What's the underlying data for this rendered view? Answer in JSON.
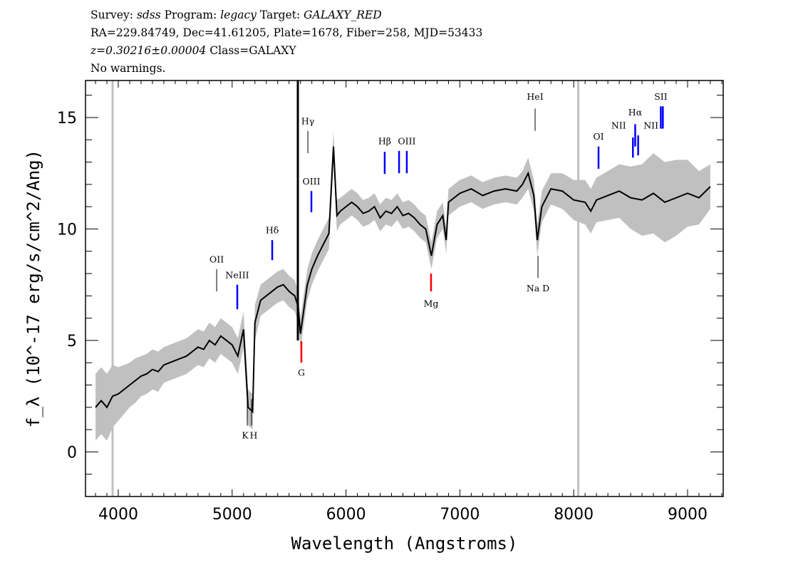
{
  "header": {
    "line1": {
      "survey_label": "Survey:",
      "survey": "sdss",
      "program_label": "Program:",
      "program": "legacy",
      "target_label": "Target:",
      "target": "GALAXY_RED"
    },
    "line2": "RA=229.84749, Dec=41.61205, Plate=1678, Fiber=258, MJD=53433",
    "line3": {
      "z": "z=0.30216±0.00004",
      "class": "Class=GALAXY"
    },
    "line4": "No warnings."
  },
  "chart_data": {
    "type": "line",
    "xlabel": "Wavelength (Angstroms)",
    "ylabel": "f_λ (10^-17 erg/s/cm^2/Ang)",
    "xlim": [
      3712,
      9313
    ],
    "ylim": [
      -2.0,
      16.66
    ],
    "xticks": [
      4000,
      5000,
      6000,
      7000,
      8000,
      9000
    ],
    "yticks": [
      0,
      5,
      10,
      15
    ],
    "grid": false,
    "colors": {
      "flux": "#000000",
      "noisy_flux": "#c0c0c0",
      "emission": "#0000ff",
      "absorption": "#ff0000",
      "sky": "#000000"
    },
    "flux": {
      "x": [
        3800,
        3850,
        3900,
        3950,
        4000,
        4050,
        4100,
        4150,
        4200,
        4250,
        4300,
        4350,
        4400,
        4450,
        4500,
        4550,
        4600,
        4650,
        4700,
        4750,
        4800,
        4850,
        4900,
        4950,
        5000,
        5050,
        5100,
        5140,
        5180,
        5200,
        5250,
        5300,
        5350,
        5400,
        5450,
        5500,
        5550,
        5580,
        5600,
        5630,
        5660,
        5700,
        5750,
        5800,
        5850,
        5890,
        5920,
        5950,
        6000,
        6050,
        6100,
        6150,
        6200,
        6250,
        6300,
        6350,
        6400,
        6450,
        6500,
        6550,
        6600,
        6650,
        6700,
        6750,
        6800,
        6850,
        6880,
        6900,
        6950,
        7000,
        7100,
        7200,
        7300,
        7400,
        7500,
        7550,
        7600,
        7650,
        7680,
        7720,
        7800,
        7900,
        8000,
        8100,
        8150,
        8200,
        8300,
        8400,
        8500,
        8600,
        8700,
        8800,
        8900,
        9000,
        9100,
        9200
      ],
      "y": [
        2.0,
        2.3,
        2.0,
        2.5,
        2.6,
        2.8,
        3.0,
        3.2,
        3.4,
        3.5,
        3.7,
        3.6,
        3.9,
        4.0,
        4.1,
        4.2,
        4.3,
        4.5,
        4.7,
        4.6,
        5.0,
        4.8,
        5.2,
        5.0,
        4.8,
        4.3,
        5.5,
        2.0,
        1.8,
        5.8,
        6.8,
        7.0,
        7.2,
        7.4,
        7.5,
        7.2,
        7.0,
        6.5,
        5.3,
        6.4,
        7.5,
        8.2,
        8.8,
        9.3,
        9.8,
        13.7,
        10.6,
        10.8,
        11.0,
        11.2,
        11.0,
        10.7,
        10.8,
        11.0,
        10.5,
        10.8,
        10.7,
        11.0,
        10.6,
        10.7,
        10.5,
        10.2,
        10.0,
        8.8,
        10.2,
        10.6,
        9.5,
        11.2,
        11.4,
        11.6,
        11.8,
        11.5,
        11.7,
        11.8,
        11.7,
        12.0,
        12.5,
        11.5,
        9.5,
        11.0,
        11.8,
        11.7,
        11.3,
        11.2,
        10.8,
        11.3,
        11.5,
        11.7,
        11.4,
        11.3,
        11.6,
        11.2,
        11.4,
        11.6,
        11.4,
        11.9
      ],
      "error": [
        1.5,
        1.5,
        1.5,
        1.4,
        1.2,
        1.1,
        1.0,
        1.0,
        0.9,
        0.9,
        0.9,
        0.9,
        0.8,
        0.8,
        0.8,
        0.8,
        0.8,
        0.8,
        0.8,
        0.8,
        0.8,
        0.8,
        0.8,
        0.8,
        0.8,
        0.8,
        0.8,
        0.8,
        0.8,
        0.8,
        0.7,
        0.7,
        0.7,
        0.7,
        0.7,
        0.7,
        0.7,
        0.7,
        0.7,
        0.7,
        0.7,
        0.7,
        0.7,
        0.7,
        0.7,
        0.7,
        0.7,
        0.6,
        0.6,
        0.6,
        0.6,
        0.6,
        0.6,
        0.6,
        0.6,
        0.6,
        0.6,
        0.6,
        0.6,
        0.6,
        0.6,
        0.6,
        0.6,
        0.6,
        0.6,
        0.6,
        0.6,
        0.6,
        0.6,
        0.6,
        0.6,
        0.6,
        0.6,
        0.6,
        0.6,
        0.6,
        0.7,
        0.7,
        0.7,
        0.7,
        0.7,
        0.8,
        0.9,
        1.0,
        1.0,
        1.0,
        1.1,
        1.2,
        1.4,
        1.6,
        1.8,
        1.8,
        1.7,
        1.5,
        1.2,
        1.0
      ]
    },
    "masked": [
      3950,
      8040
    ],
    "sky_line": {
      "x": 5577,
      "y": 16.66
    },
    "lines": [
      {
        "label": "OII",
        "x": 4864,
        "type": "other",
        "y0": 7.2,
        "y1": 8.2,
        "label_y": 8.5,
        "label_pos": "above"
      },
      {
        "label": "NeIII",
        "x": 5045,
        "type": "emission",
        "y0": 6.4,
        "y1": 7.5,
        "label_y": 7.8,
        "label_pos": "above"
      },
      {
        "label": "Hδ",
        "x": 5352,
        "type": "emission",
        "y0": 8.6,
        "y1": 9.5,
        "label_y": 9.8,
        "label_pos": "above"
      },
      {
        "label": "Hγ",
        "x": 5665,
        "type": "other",
        "y0": 13.4,
        "y1": 14.4,
        "label_y": 14.7,
        "label_pos": "above"
      },
      {
        "label": "OIII",
        "x": 5696,
        "type": "emission",
        "y0": 10.75,
        "y1": 11.7,
        "label_y": 12.0,
        "label_pos": "above"
      },
      {
        "label": "Hβ",
        "x": 6340,
        "type": "emission",
        "y0": 12.47,
        "y1": 13.46,
        "label_y": 13.8,
        "label_pos": "above"
      },
      {
        "label": "",
        "x": 6466,
        "type": "emission",
        "y0": 12.5,
        "y1": 13.5,
        "label_y": 13.8,
        "label_pos": "above"
      },
      {
        "label": "OIII",
        "x": 6534,
        "type": "emission",
        "y0": 12.5,
        "y1": 13.5,
        "label_y": 13.8,
        "label_pos": "above"
      },
      {
        "label": "G",
        "x": 5608,
        "type": "absorption",
        "y0": 4.0,
        "y1": 4.96,
        "label_y": 3.6,
        "label_pos": "below"
      },
      {
        "label": "Mg",
        "x": 6747,
        "type": "absorption",
        "y0": 7.2,
        "y1": 8.0,
        "label_y": 6.7,
        "label_pos": "below"
      },
      {
        "label": "K",
        "x": 5133,
        "type": "other",
        "y0": 1.18,
        "y1": 2.37,
        "label_y": 0.8,
        "label_pos": "below"
      },
      {
        "label": "H",
        "x": 5170,
        "type": "other",
        "y0": 1.18,
        "y1": 2.37,
        "label_y": 0.8,
        "label_pos": "below"
      },
      {
        "label": "Na D",
        "x": 7686,
        "type": "other",
        "y0": 7.8,
        "y1": 8.8,
        "label_y": 7.4,
        "label_pos": "below"
      },
      {
        "label": "HeI",
        "x": 7661,
        "type": "other",
        "y0": 14.4,
        "y1": 15.4,
        "label_y": 15.8,
        "label_pos": "above"
      },
      {
        "label": "OI",
        "x": 8218,
        "type": "emission",
        "y0": 12.7,
        "y1": 13.7,
        "label_y": 14.0,
        "label_pos": "above"
      },
      {
        "label": "NII",
        "x": 8520,
        "type": "emission",
        "y0": 13.2,
        "y1": 14.1,
        "label_y": 14.5,
        "label_pos": "above"
      },
      {
        "label": "Hα",
        "x": 8540,
        "type": "emission",
        "y0": 13.7,
        "y1": 14.7,
        "label_y": 15.1,
        "label_pos": "above"
      },
      {
        "label": "NII",
        "x": 8566,
        "type": "emission",
        "y0": 13.3,
        "y1": 14.2,
        "label_y": 14.5,
        "label_pos": "above-right"
      },
      {
        "label": "SII",
        "x": 8765,
        "type": "emission",
        "y0": 14.5,
        "y1": 15.5,
        "label_y": 15.8,
        "label_pos": "above"
      },
      {
        "label": "",
        "x": 8783,
        "type": "emission",
        "y0": 14.5,
        "y1": 15.5,
        "label_y": 15.8,
        "label_pos": "above"
      }
    ]
  }
}
